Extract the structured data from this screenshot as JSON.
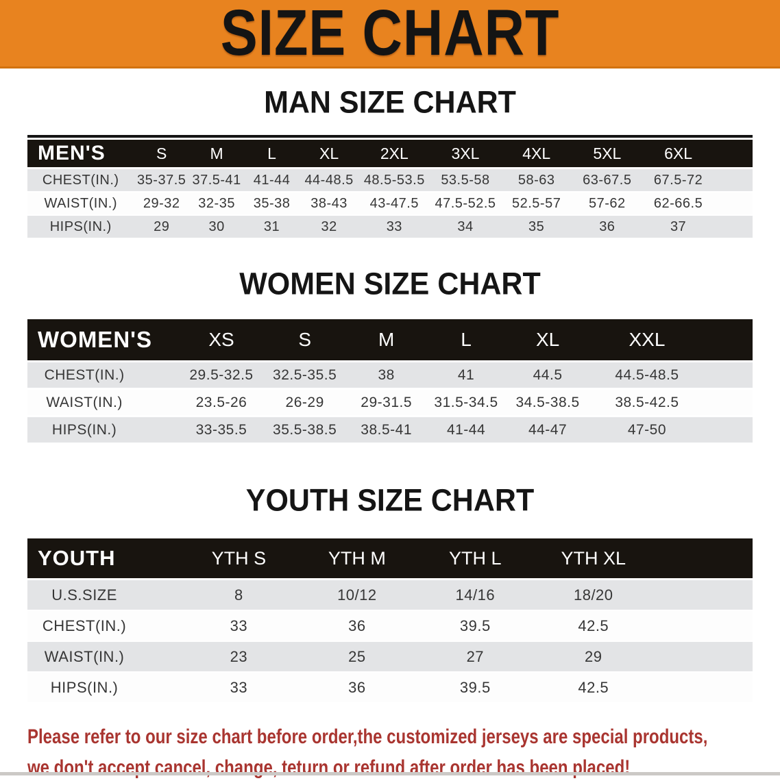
{
  "banner": {
    "title": "SIZE CHART"
  },
  "colors": {
    "banner_orange": "#E8831F",
    "banner_border": "#D2720F",
    "header_band_black": "#18140F",
    "row_stripe_gray": "#E3E4E6",
    "disclaimer_red": "#A93530"
  },
  "sections": [
    {
      "title": "MAN SIZE CHART",
      "header_label": "MEN'S",
      "columns": [
        "S",
        "M",
        "L",
        "XL",
        "2XL",
        "3XL",
        "4XL",
        "5XL",
        "6XL"
      ],
      "rows": [
        {
          "label": "CHEST(IN.)",
          "values": [
            "35-37.5",
            "37.5-41",
            "41-44",
            "44-48.5",
            "48.5-53.5",
            "53.5-58",
            "58-63",
            "63-67.5",
            "67.5-72"
          ]
        },
        {
          "label": "WAIST(IN.)",
          "values": [
            "29-32",
            "32-35",
            "35-38",
            "38-43",
            "43-47.5",
            "47.5-52.5",
            "52.5-57",
            "57-62",
            "62-66.5"
          ]
        },
        {
          "label": "HIPS(IN.)",
          "values": [
            "29",
            "30",
            "31",
            "32",
            "33",
            "34",
            "35",
            "36",
            "37"
          ]
        }
      ]
    },
    {
      "title": "WOMEN SIZE CHART",
      "header_label": "WOMEN'S",
      "columns": [
        "XS",
        "S",
        "M",
        "L",
        "XL",
        "XXL"
      ],
      "rows": [
        {
          "label": "CHEST(IN.)",
          "values": [
            "29.5-32.5",
            "32.5-35.5",
            "38",
            "41",
            "44.5",
            "44.5-48.5"
          ]
        },
        {
          "label": "WAIST(IN.)",
          "values": [
            "23.5-26",
            "26-29",
            "29-31.5",
            "31.5-34.5",
            "34.5-38.5",
            "38.5-42.5"
          ]
        },
        {
          "label": "HIPS(IN.)",
          "values": [
            "33-35.5",
            "35.5-38.5",
            "38.5-41",
            "41-44",
            "44-47",
            "47-50"
          ]
        }
      ]
    },
    {
      "title": "YOUTH SIZE CHART",
      "header_label": "YOUTH",
      "columns": [
        "YTH S",
        "YTH M",
        "YTH L",
        "YTH XL"
      ],
      "rows": [
        {
          "label": "U.S.SIZE",
          "values": [
            "8",
            "10/12",
            "14/16",
            "18/20"
          ]
        },
        {
          "label": "CHEST(IN.)",
          "values": [
            "33",
            "36",
            "39.5",
            "42.5"
          ]
        },
        {
          "label": "WAIST(IN.)",
          "values": [
            "23",
            "25",
            "27",
            "29"
          ]
        },
        {
          "label": "HIPS(IN.)",
          "values": [
            "33",
            "36",
            "39.5",
            "42.5"
          ]
        }
      ]
    }
  ],
  "disclaimer": {
    "lines": [
      "Please refer to our size chart before order,the customized jerseys are special products,",
      "we don't accept cancel, change, teturn or refund after order has been placed!"
    ]
  }
}
